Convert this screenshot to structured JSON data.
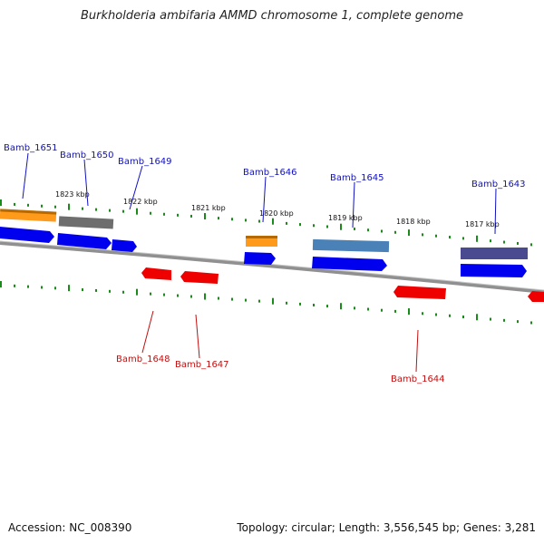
{
  "title": "Burkholderia ambifaria AMMD chromosome 1, complete genome",
  "footer": {
    "accession": "Accession: NC_008390",
    "topology": "Topology: circular; Length: 3,556,545 bp; Genes: 3,281"
  },
  "kbp_labels": [
    "1823 kbp",
    "1822 kbp",
    "1821 kbp",
    "1820 kbp",
    "1819 kbp",
    "1818 kbp",
    "1817 kbp"
  ],
  "genes_top": [
    "Bamb_1651",
    "Bamb_1650",
    "Bamb_1649",
    "Bamb_1646",
    "Bamb_1645",
    "Bamb_1643"
  ],
  "genes_bottom": [
    "Bamb_1648",
    "Bamb_1647",
    "Bamb_1644"
  ],
  "colors": {
    "forward_strand": "#0000ee",
    "reverse_strand": "#ee0000",
    "backbone": "#808080",
    "ticks": "#1a8a1a",
    "top_labels": "#1010c0",
    "bottom_labels": "#c01010"
  }
}
